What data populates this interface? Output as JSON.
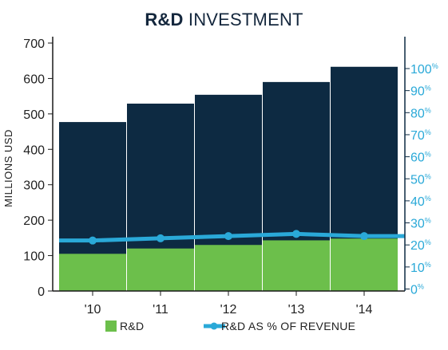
{
  "title": {
    "bold": "R&D",
    "rest": " INVESTMENT"
  },
  "chart_data": {
    "type": "bar",
    "categories": [
      "'10",
      "'11",
      "'12",
      "'13",
      "'14"
    ],
    "y_left": {
      "label": "MILLIONS USD",
      "range": [
        0,
        700
      ],
      "ticks": [
        0,
        100,
        200,
        300,
        400,
        500,
        600,
        700
      ]
    },
    "y_right": {
      "range": [
        0,
        100
      ],
      "ticks": [
        0,
        10,
        20,
        30,
        40,
        50,
        60,
        70,
        80,
        90,
        100
      ],
      "tick_suffix": "%"
    },
    "series": [
      {
        "name": "",
        "kind": "bar-total",
        "color": "#0d2a42",
        "values": [
          477,
          529,
          554,
          590,
          633
        ]
      },
      {
        "name": "R&D",
        "kind": "bar",
        "color": "#6cbf4b",
        "values": [
          105,
          120,
          130,
          143,
          148
        ]
      },
      {
        "name": "R&D AS % OF REVENUE",
        "kind": "line",
        "axis": "right",
        "color": "#2aa9d8",
        "values": [
          22,
          23,
          24,
          25,
          24
        ]
      }
    ],
    "legend": {
      "placement": "bottom"
    },
    "grid": false
  }
}
